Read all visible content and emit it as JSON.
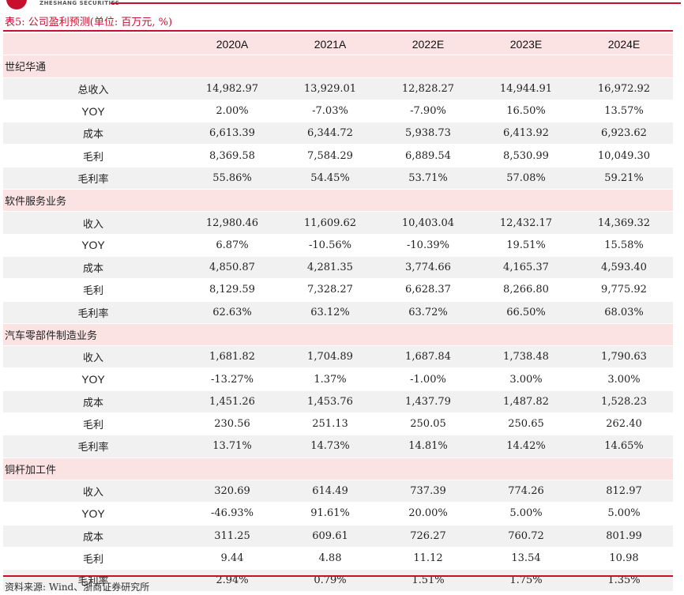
{
  "header": {
    "brand_en": "ZHESHANG SECURITIES",
    "caption": "表5:  公司盈利预测(单位: 百万元, %)"
  },
  "table": {
    "columns": [
      "2020A",
      "2021A",
      "2022E",
      "2023E",
      "2024E"
    ],
    "sections": [
      {
        "name": "世纪华通",
        "rows": [
          {
            "label": "总收入",
            "values": [
              "14,982.97",
              "13,929.01",
              "12,828.27",
              "14,944.91",
              "16,972.92"
            ]
          },
          {
            "label": "YOY",
            "values": [
              "2.00%",
              "-7.03%",
              "-7.90%",
              "16.50%",
              "13.57%"
            ]
          },
          {
            "label": "成本",
            "values": [
              "6,613.39",
              "6,344.72",
              "5,938.73",
              "6,413.92",
              "6,923.62"
            ]
          },
          {
            "label": "毛利",
            "values": [
              "8,369.58",
              "7,584.29",
              "6,889.54",
              "8,530.99",
              "10,049.30"
            ]
          },
          {
            "label": "毛利率",
            "values": [
              "55.86%",
              "54.45%",
              "53.71%",
              "57.08%",
              "59.21%"
            ]
          }
        ]
      },
      {
        "name": "软件服务业务",
        "rows": [
          {
            "label": "收入",
            "values": [
              "12,980.46",
              "11,609.62",
              "10,403.04",
              "12,432.17",
              "14,369.32"
            ]
          },
          {
            "label": "YOY",
            "values": [
              "6.87%",
              "-10.56%",
              "-10.39%",
              "19.51%",
              "15.58%"
            ]
          },
          {
            "label": "成本",
            "values": [
              "4,850.87",
              "4,281.35",
              "3,774.66",
              "4,165.37",
              "4,593.40"
            ]
          },
          {
            "label": "毛利",
            "values": [
              "8,129.59",
              "7,328.27",
              "6,628.37",
              "8,266.80",
              "9,775.92"
            ]
          },
          {
            "label": "毛利率",
            "values": [
              "62.63%",
              "63.12%",
              "63.72%",
              "66.50%",
              "68.03%"
            ]
          }
        ]
      },
      {
        "name": "汽车零部件制造业务",
        "rows": [
          {
            "label": "收入",
            "values": [
              "1,681.82",
              "1,704.89",
              "1,687.84",
              "1,738.48",
              "1,790.63"
            ]
          },
          {
            "label": "YOY",
            "values": [
              "-13.27%",
              "1.37%",
              "-1.00%",
              "3.00%",
              "3.00%"
            ]
          },
          {
            "label": "成本",
            "values": [
              "1,451.26",
              "1,453.76",
              "1,437.79",
              "1,487.82",
              "1,528.23"
            ]
          },
          {
            "label": "毛利",
            "values": [
              "230.56",
              "251.13",
              "250.05",
              "250.65",
              "262.40"
            ]
          },
          {
            "label": "毛利率",
            "values": [
              "13.71%",
              "14.73%",
              "14.81%",
              "14.42%",
              "14.65%"
            ]
          }
        ]
      },
      {
        "name": "铜杆加工件",
        "rows": [
          {
            "label": "收入",
            "values": [
              "320.69",
              "614.49",
              "737.39",
              "774.26",
              "812.97"
            ]
          },
          {
            "label": "YOY",
            "values": [
              "-46.93%",
              "91.61%",
              "20.00%",
              "5.00%",
              "5.00%"
            ]
          },
          {
            "label": "成本",
            "values": [
              "311.25",
              "609.61",
              "726.27",
              "760.72",
              "801.99"
            ]
          },
          {
            "label": "毛利",
            "values": [
              "9.44",
              "4.88",
              "11.12",
              "13.54",
              "10.98"
            ]
          },
          {
            "label": "毛利率",
            "values": [
              "2.94%",
              "0.79%",
              "1.51%",
              "1.75%",
              "1.35%"
            ]
          }
        ]
      }
    ]
  },
  "footer": {
    "source": "资料来源: Wind、浙商证券研究所"
  },
  "colors": {
    "accent": "#c8102e",
    "section_bg": "#fbe3e4",
    "stripe_bg": "#f1f1f1"
  }
}
